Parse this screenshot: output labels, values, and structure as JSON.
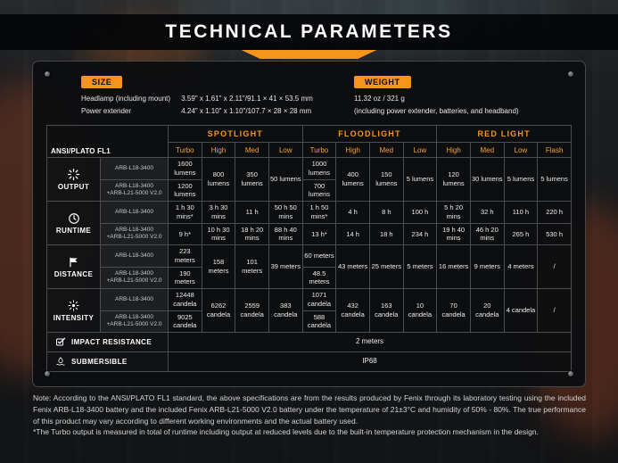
{
  "title": "TECHNICAL PARAMETERS",
  "accent_color": "#f7941e",
  "specs": {
    "size_label": "SIZE",
    "size_lines": [
      {
        "name": "Headlamp (including mount)",
        "value": "3.59\" x 1.61\" x 2.11\"/91.1 × 41 × 53.5 mm"
      },
      {
        "name": "Power extender",
        "value": "4.24\" x 1.10\" x 1.10\"/107.7 × 28 × 28 mm"
      }
    ],
    "weight_label": "WEIGHT",
    "weight_lines": [
      "11.32 oz / 321 g",
      "(including power extender, batteries, and headband)"
    ]
  },
  "table": {
    "corner_label": "ANSI/PLATO FL1",
    "groups": [
      {
        "label": "SPOTLIGHT",
        "cols": [
          "Turbo",
          "High",
          "Med",
          "Low"
        ]
      },
      {
        "label": "FLOODLIGHT",
        "cols": [
          "Turbo",
          "High",
          "Med",
          "Low"
        ]
      },
      {
        "label": "RED LIGHT",
        "cols": [
          "High",
          "Med",
          "Low",
          "Flash"
        ]
      }
    ],
    "batteries": [
      "ARB-L18-3400",
      "ARB-L18-3400\n+ARB-L21-5000 V2.0"
    ],
    "metrics": [
      {
        "id": "output",
        "name": "OUTPUT",
        "values": [
          [
            "1600 lumens",
            "1200 lumens"
          ],
          "800 lumens",
          "350 lumens",
          "50 lumens",
          [
            "1000 lumens",
            "700 lumens"
          ],
          "400 lumens",
          "150 lumens",
          "5 lumens",
          "120 lumens",
          "30 lumens",
          "5 lumens",
          "5 lumens"
        ]
      },
      {
        "id": "runtime",
        "name": "RUNTIME",
        "values": [
          [
            "1 h 30 mins*",
            "9 h*"
          ],
          [
            "3 h 30 mins",
            "10 h 30 mins"
          ],
          [
            "11 h",
            "18 h 20 mins"
          ],
          [
            "50 h 50 mins",
            "88 h 40 mins"
          ],
          [
            "1 h 50 mins*",
            "13 h*"
          ],
          [
            "4 h",
            "14 h"
          ],
          [
            "8 h",
            "18 h"
          ],
          [
            "100 h",
            "234 h"
          ],
          [
            "5 h 20 mins",
            "19 h 40 mins"
          ],
          [
            "32 h",
            "46 h 20 mins"
          ],
          [
            "110 h",
            "265 h"
          ],
          [
            "220 h",
            "530 h"
          ]
        ]
      },
      {
        "id": "distance",
        "name": "DISTANCE",
        "values": [
          [
            "223 meters",
            "190 meters"
          ],
          "158 meters",
          "101 meters",
          "39 meters",
          [
            "60 meters",
            "48.5 meters"
          ],
          "43 meters",
          "25 meters",
          "5 meters",
          "16 meters",
          "9 meters",
          "4 meters",
          "/"
        ]
      },
      {
        "id": "intensity",
        "name": "INTENSITY",
        "values": [
          [
            "12448 candela",
            "9025 candela"
          ],
          "6262 candela",
          "2559 candela",
          "383 candela",
          [
            "1071 candela",
            "588 candela"
          ],
          "432 candela",
          "163 candela",
          "10 candela",
          "70 candela",
          "20 candela",
          "4 candela",
          "/"
        ]
      }
    ],
    "footer_rows": [
      {
        "id": "impact-resistance",
        "label": "IMPACT RESISTANCE",
        "value": "2 meters"
      },
      {
        "id": "submersible",
        "label": "SUBMERSIBLE",
        "value": "IP68"
      }
    ]
  },
  "notes": [
    "Note: According to the ANSI/PLATO FL1 standard, the above specifications are from the results produced by Fenix through its laboratory testing using the included Fenix ARB-L18-3400 battery and the included Fenix ARB-L21-5000 V2.0 battery under the temperature of 21±3°C and humidity of 50% - 80%. The true performance of this product may vary according to different working environments and the actual battery used.",
    "*The Turbo output is measured in total of runtime including output at reduced levels due to the built-in temperature protection mechanism in the design."
  ]
}
